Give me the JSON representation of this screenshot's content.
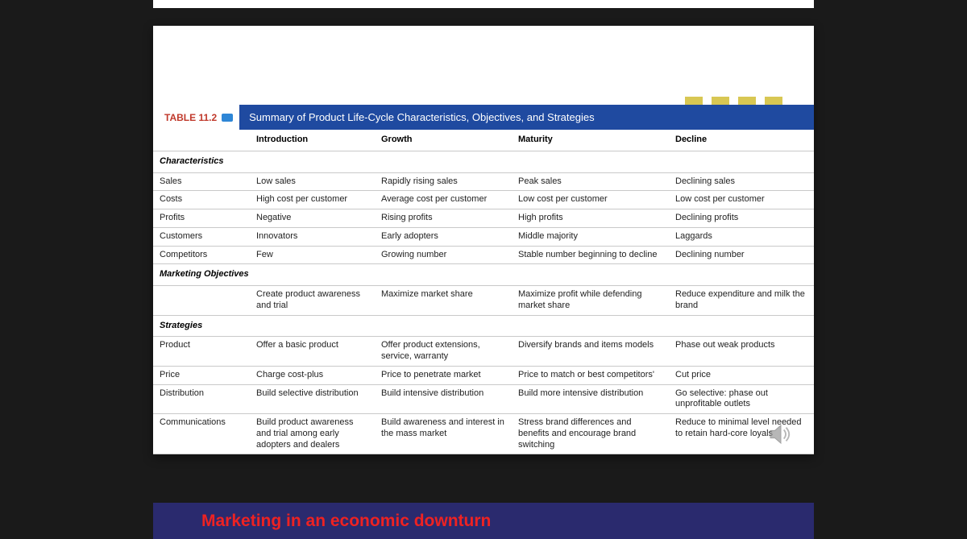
{
  "table": {
    "label": "TABLE 11.2",
    "title": "Summary of Product Life-Cycle Characteristics, Objectives, and Strategies",
    "columns": [
      "",
      "Introduction",
      "Growth",
      "Maturity",
      "Decline"
    ],
    "col_widths": [
      "120px",
      "155px",
      "170px",
      "195px",
      "auto"
    ],
    "sections": [
      {
        "heading": "Characteristics",
        "rows": [
          {
            "label": "Sales",
            "cells": [
              "Low sales",
              "Rapidly rising sales",
              "Peak sales",
              "Declining sales"
            ]
          },
          {
            "label": "Costs",
            "cells": [
              "High cost per customer",
              "Average cost per customer",
              "Low cost per customer",
              "Low cost per customer"
            ]
          },
          {
            "label": "Profits",
            "cells": [
              "Negative",
              "Rising profits",
              "High profits",
              "Declining profits"
            ]
          },
          {
            "label": "Customers",
            "cells": [
              "Innovators",
              "Early adopters",
              "Middle majority",
              "Laggards"
            ]
          },
          {
            "label": "Competitors",
            "cells": [
              "Few",
              "Growing number",
              "Stable number beginning to decline",
              "Declining number"
            ]
          }
        ]
      },
      {
        "heading": "Marketing Objectives",
        "rows": [
          {
            "label": "",
            "cells": [
              "Create product awareness and trial",
              "Maximize market share",
              "Maximize profit while defending market share",
              "Reduce expenditure and milk the brand"
            ]
          }
        ]
      },
      {
        "heading": "Strategies",
        "rows": [
          {
            "label": "Product",
            "cells": [
              "Offer a basic product",
              "Offer product extensions, service, warranty",
              "Diversify brands and items models",
              "Phase out weak products"
            ]
          },
          {
            "label": "Price",
            "cells": [
              "Charge cost-plus",
              "Price to penetrate market",
              "Price to match or best competitors'",
              "Cut price"
            ]
          },
          {
            "label": "Distribution",
            "cells": [
              "Build selective distribution",
              "Build intensive distribution",
              "Build more intensive distribution",
              "Go selective: phase out unprofitable outlets"
            ]
          },
          {
            "label": "Communications",
            "cells": [
              "Build product awareness and trial among early adopters and dealers",
              "Build awareness and interest in the mass market",
              "Stress brand differences and benefits and encourage brand switching",
              "Reduce to minimal level needed to retain hard-core loyals"
            ]
          }
        ]
      }
    ],
    "colors": {
      "title_bar_bg": "#1f4aa0",
      "title_bar_text": "#ffffff",
      "label_text": "#c0392b",
      "border": "#c9c9c9",
      "text": "#222222"
    },
    "font_size_pt": 11
  },
  "next_slide": {
    "title": "Marketing in an economic downturn",
    "bg": "#2a2a6e",
    "title_color": "#e22"
  }
}
